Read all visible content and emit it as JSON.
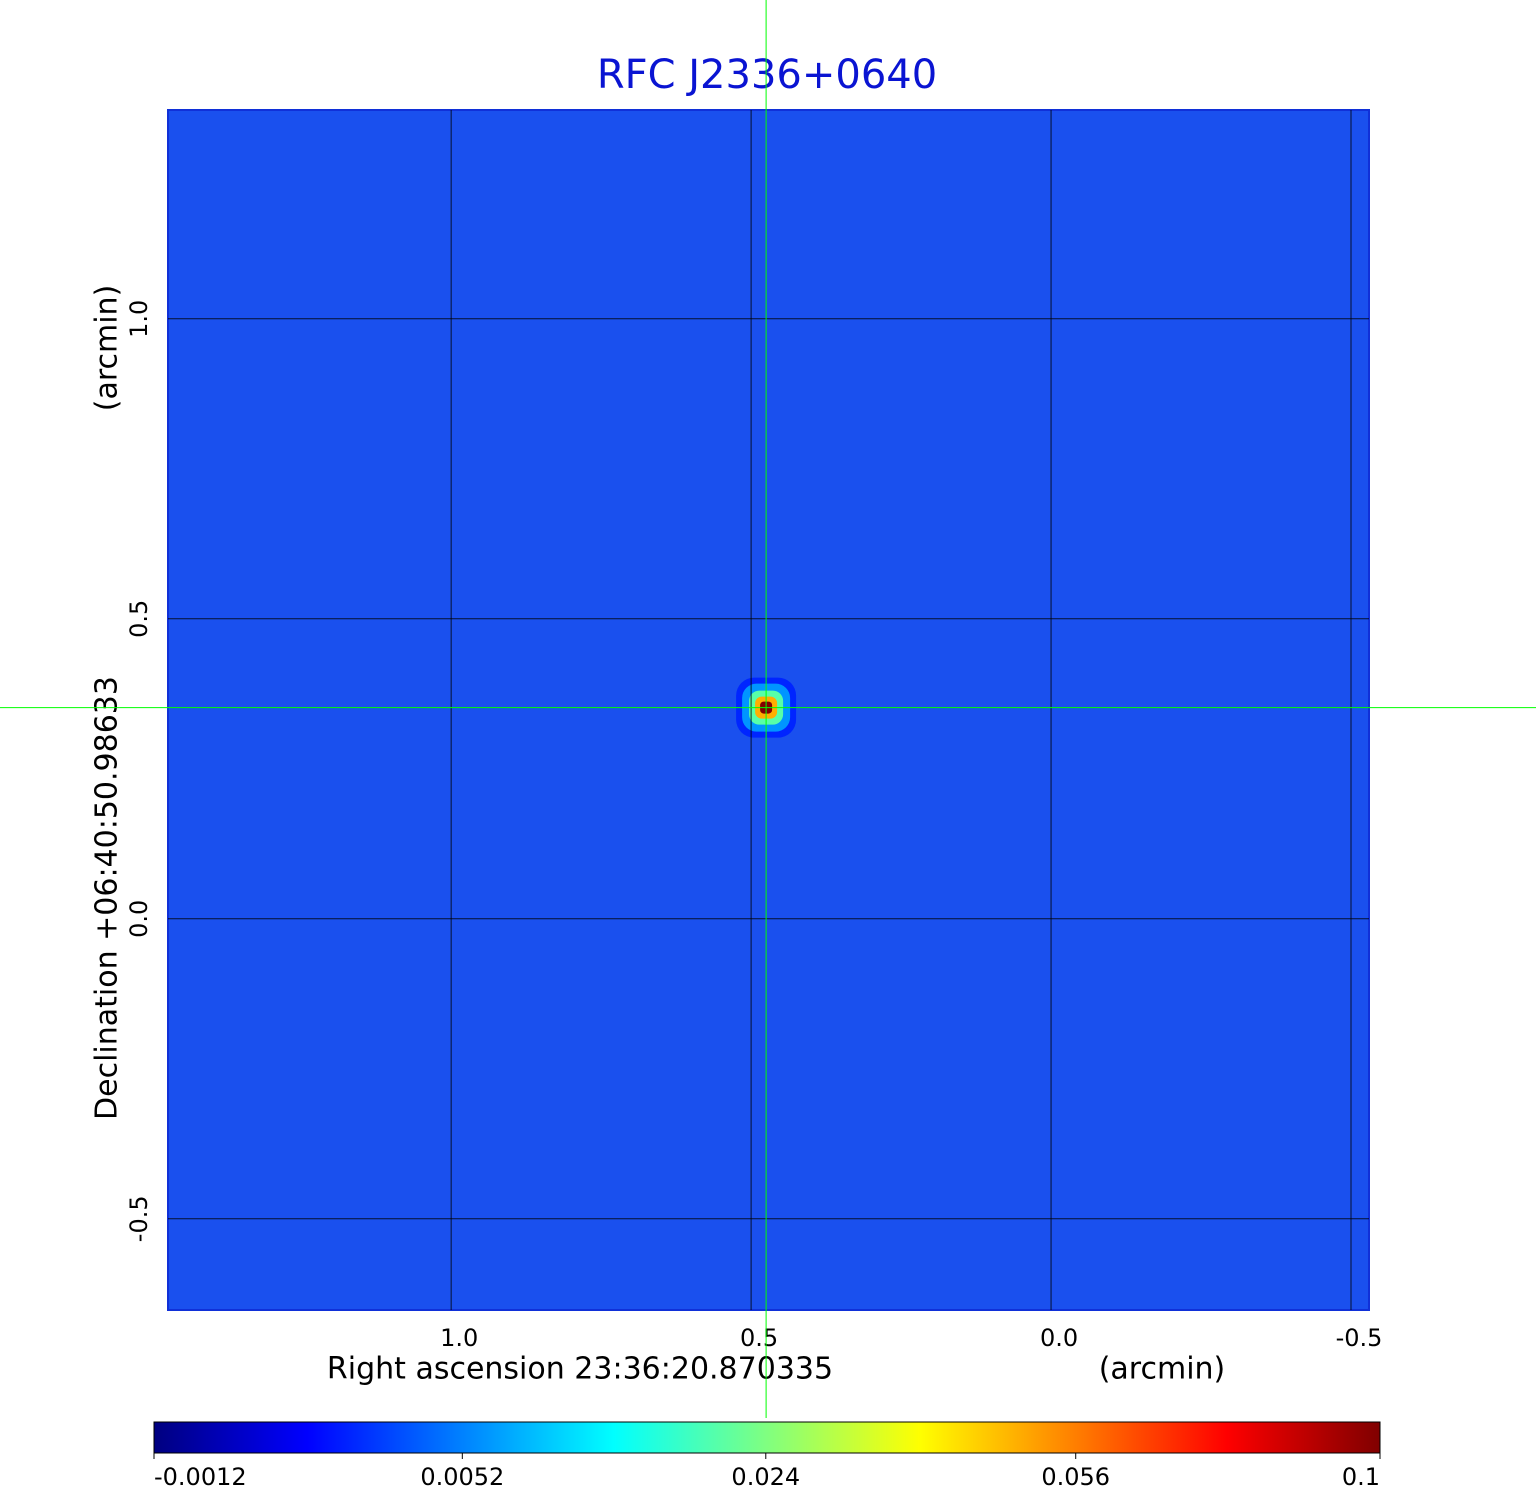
{
  "chart_data": {
    "type": "image",
    "title": "RFC J2336+0640",
    "x_label": "Right ascension  23:36:20.870335",
    "x_unit": "(arcmin)",
    "y_label": "Declination  +06:40:50.98633",
    "y_unit": "(arcmin)",
    "xlim": [
      1.472,
      -0.53
    ],
    "ylim": [
      -0.652,
      1.348
    ],
    "xticks": [
      {
        "value": 1,
        "label": "1.0"
      },
      0.5,
      {
        "value": 0,
        "label": "0.0"
      },
      -0.5
    ],
    "yticks": [
      {
        "value": 1,
        "label": "1.0"
      },
      0.5,
      {
        "value": 0,
        "label": "0.0"
      },
      -0.5
    ],
    "grid": true,
    "source": {
      "x": 0.475,
      "y": 0.352,
      "peak": 0.1
    },
    "colormap": "jet",
    "colorbar_scale": "sqrt",
    "clim": [
      -0.0012,
      0.1
    ],
    "colorbar_ticks": [
      -0.0012,
      0.0052,
      0.024,
      0.056,
      0.1
    ]
  }
}
